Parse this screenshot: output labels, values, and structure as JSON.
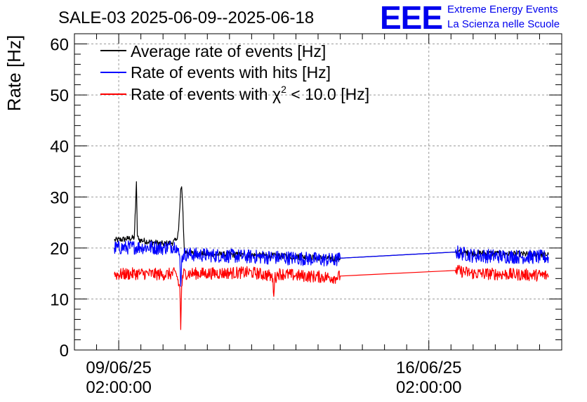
{
  "header": {
    "title": "SALE-03 2025-06-09--2025-06-18",
    "logo_text": "EEE",
    "logo_line1": "Extreme Energy Events",
    "logo_line2": "La Scienza nelle Scuole"
  },
  "colors": {
    "average": "#000000",
    "hits": "#0000ff",
    "chi2": "#ff0000",
    "logo": "#0000ee",
    "grid": "#9a9a9a"
  },
  "chart_data": {
    "type": "line",
    "title": "SALE-03 2025-06-09--2025-06-18",
    "xlabel": "",
    "ylabel": "Rate [Hz]",
    "x_unit": "days since 09/06/25 02:00:00",
    "xlim": [
      -1.0,
      10.0
    ],
    "ylim": [
      0,
      62
    ],
    "y_ticks": [
      0,
      10,
      20,
      30,
      40,
      50,
      60
    ],
    "x_tick_labels": [
      {
        "x": 0,
        "line1": "09/06/25",
        "line2": "02:00:00"
      },
      {
        "x": 7,
        "line1": "16/06/25",
        "line2": "02:00:00"
      }
    ],
    "grid": true,
    "legend_position": "top-left",
    "series": [
      {
        "name": "Average rate of events [Hz]",
        "key": "average",
        "label_main": "Average rate of events [Hz]",
        "points": [
          [
            -0.1,
            21.5
          ],
          [
            0.2,
            21.8
          ],
          [
            0.35,
            22.0
          ],
          [
            0.38,
            28.0
          ],
          [
            0.4,
            33.0
          ],
          [
            0.42,
            22.5
          ],
          [
            0.45,
            21.6
          ],
          [
            0.7,
            21.2
          ],
          [
            1.0,
            20.8
          ],
          [
            1.2,
            21.0
          ],
          [
            1.3,
            21.5
          ],
          [
            1.35,
            23.5
          ],
          [
            1.38,
            28.0
          ],
          [
            1.4,
            31.5
          ],
          [
            1.42,
            32.0
          ],
          [
            1.44,
            29.0
          ],
          [
            1.46,
            24.0
          ],
          [
            1.48,
            19.5
          ],
          [
            1.55,
            19.0
          ],
          [
            2.0,
            18.8
          ],
          [
            3.0,
            18.6
          ],
          [
            4.0,
            18.3
          ],
          [
            4.9,
            17.9
          ],
          [
            5.0,
            18.0
          ],
          [
            7.6,
            19.2
          ],
          [
            8.0,
            19.0
          ],
          [
            9.0,
            18.8
          ],
          [
            9.7,
            18.7
          ]
        ]
      },
      {
        "name": "Rate of events with hits [Hz]",
        "key": "hits",
        "label_main": "Rate of events with hits [Hz]",
        "points": [
          [
            -0.1,
            20.0
          ],
          [
            0.5,
            20.2
          ],
          [
            1.0,
            20.0
          ],
          [
            1.3,
            20.5
          ],
          [
            1.38,
            18.0
          ],
          [
            1.4,
            12.5
          ],
          [
            1.42,
            17.5
          ],
          [
            1.46,
            18.8
          ],
          [
            2.0,
            18.6
          ],
          [
            3.0,
            18.3
          ],
          [
            4.0,
            18.0
          ],
          [
            4.9,
            17.6
          ],
          [
            5.0,
            18.0
          ],
          [
            7.6,
            19.2
          ],
          [
            8.0,
            18.5
          ],
          [
            9.0,
            18.3
          ],
          [
            9.7,
            18.2
          ]
        ]
      },
      {
        "name": "Rate of events with χ2 < 10.0 [Hz]",
        "key": "chi2",
        "label_prefix": "Rate of events with ",
        "label_symbol": "χ",
        "label_sup": "2",
        "label_suffix": " < 10.0 [Hz]",
        "points": [
          [
            -0.1,
            14.8
          ],
          [
            0.5,
            15.0
          ],
          [
            1.0,
            14.8
          ],
          [
            1.3,
            15.0
          ],
          [
            1.38,
            12.0
          ],
          [
            1.4,
            4.0
          ],
          [
            1.42,
            12.5
          ],
          [
            1.46,
            15.0
          ],
          [
            2.0,
            15.0
          ],
          [
            3.0,
            15.2
          ],
          [
            3.4,
            14.6
          ],
          [
            3.48,
            14.0
          ],
          [
            3.5,
            10.5
          ],
          [
            3.52,
            14.0
          ],
          [
            3.6,
            15.0
          ],
          [
            4.0,
            14.6
          ],
          [
            4.9,
            14.2
          ],
          [
            5.0,
            14.5
          ],
          [
            7.6,
            15.6
          ],
          [
            8.0,
            15.0
          ],
          [
            9.0,
            14.8
          ],
          [
            9.7,
            14.6
          ]
        ]
      }
    ]
  }
}
